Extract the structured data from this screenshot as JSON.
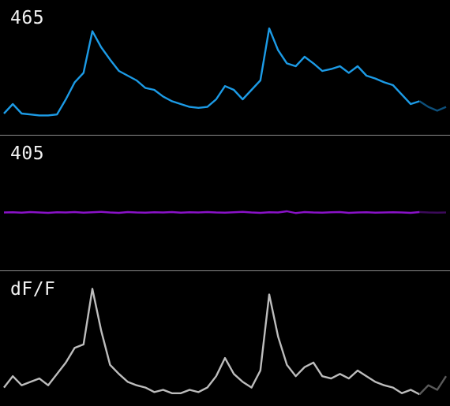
{
  "chart_data": [
    {
      "type": "line",
      "title": "465",
      "color": "#1c9be6",
      "fade_color": "#0d4f7a",
      "x": [
        0.0,
        0.02,
        0.04,
        0.06,
        0.08,
        0.1,
        0.12,
        0.14,
        0.16,
        0.18,
        0.2,
        0.22,
        0.24,
        0.26,
        0.28,
        0.3,
        0.32,
        0.34,
        0.36,
        0.38,
        0.4,
        0.42,
        0.44,
        0.46,
        0.48,
        0.5,
        0.52,
        0.54,
        0.56,
        0.58,
        0.6,
        0.62,
        0.64,
        0.66,
        0.68,
        0.7,
        0.72,
        0.74,
        0.76,
        0.78,
        0.8,
        0.82,
        0.84,
        0.86,
        0.88,
        0.9,
        0.92,
        0.94,
        0.96,
        0.98,
        1.0
      ],
      "values": [
        0.05,
        0.15,
        0.05,
        0.04,
        0.03,
        0.03,
        0.04,
        0.2,
        0.38,
        0.48,
        0.92,
        0.75,
        0.62,
        0.5,
        0.45,
        0.4,
        0.32,
        0.3,
        0.23,
        0.18,
        0.15,
        0.12,
        0.11,
        0.12,
        0.2,
        0.34,
        0.3,
        0.2,
        0.3,
        0.4,
        0.95,
        0.72,
        0.58,
        0.55,
        0.65,
        0.58,
        0.5,
        0.52,
        0.55,
        0.48,
        0.55,
        0.45,
        0.42,
        0.38,
        0.35,
        0.25,
        0.15,
        0.18,
        0.12,
        0.08,
        0.12
      ],
      "ylim": [
        0,
        1
      ]
    },
    {
      "type": "line",
      "title": "405",
      "color": "#8a12c8",
      "fade_color": "#3c0a5a",
      "x": [
        0.0,
        0.02,
        0.04,
        0.06,
        0.08,
        0.1,
        0.12,
        0.14,
        0.16,
        0.18,
        0.2,
        0.22,
        0.24,
        0.26,
        0.28,
        0.3,
        0.32,
        0.34,
        0.36,
        0.38,
        0.4,
        0.42,
        0.44,
        0.46,
        0.48,
        0.5,
        0.52,
        0.54,
        0.56,
        0.58,
        0.6,
        0.62,
        0.64,
        0.66,
        0.68,
        0.7,
        0.72,
        0.74,
        0.76,
        0.78,
        0.8,
        0.82,
        0.84,
        0.86,
        0.88,
        0.9,
        0.92,
        0.94,
        0.96,
        0.98,
        1.0
      ],
      "values": [
        0.5,
        0.51,
        0.49,
        0.52,
        0.5,
        0.48,
        0.51,
        0.5,
        0.52,
        0.49,
        0.51,
        0.53,
        0.5,
        0.48,
        0.52,
        0.5,
        0.49,
        0.51,
        0.5,
        0.52,
        0.49,
        0.51,
        0.5,
        0.52,
        0.5,
        0.49,
        0.51,
        0.53,
        0.5,
        0.48,
        0.51,
        0.5,
        0.56,
        0.47,
        0.52,
        0.5,
        0.49,
        0.51,
        0.52,
        0.48,
        0.5,
        0.51,
        0.49,
        0.5,
        0.51,
        0.5,
        0.48,
        0.52,
        0.5,
        0.49,
        0.5
      ],
      "ylim": [
        0,
        1
      ]
    },
    {
      "type": "line",
      "title": "dF/F",
      "color": "#bdbdbd",
      "fade_color": "#5a5a5a",
      "x": [
        0.0,
        0.02,
        0.04,
        0.06,
        0.08,
        0.1,
        0.12,
        0.14,
        0.16,
        0.18,
        0.2,
        0.22,
        0.24,
        0.26,
        0.28,
        0.3,
        0.32,
        0.34,
        0.36,
        0.38,
        0.4,
        0.42,
        0.44,
        0.46,
        0.48,
        0.5,
        0.52,
        0.54,
        0.56,
        0.58,
        0.6,
        0.62,
        0.64,
        0.66,
        0.68,
        0.7,
        0.72,
        0.74,
        0.76,
        0.78,
        0.8,
        0.82,
        0.84,
        0.86,
        0.88,
        0.9,
        0.92,
        0.94,
        0.96,
        0.98,
        1.0
      ],
      "values": [
        0.1,
        0.2,
        0.12,
        0.15,
        0.18,
        0.12,
        0.22,
        0.32,
        0.45,
        0.48,
        0.97,
        0.6,
        0.3,
        0.22,
        0.15,
        0.12,
        0.1,
        0.06,
        0.08,
        0.05,
        0.05,
        0.08,
        0.06,
        0.1,
        0.2,
        0.36,
        0.22,
        0.15,
        0.1,
        0.25,
        0.92,
        0.55,
        0.3,
        0.2,
        0.28,
        0.32,
        0.2,
        0.18,
        0.22,
        0.18,
        0.25,
        0.2,
        0.15,
        0.12,
        0.1,
        0.05,
        0.08,
        0.04,
        0.12,
        0.08,
        0.2
      ],
      "ylim": [
        0,
        1
      ]
    }
  ]
}
